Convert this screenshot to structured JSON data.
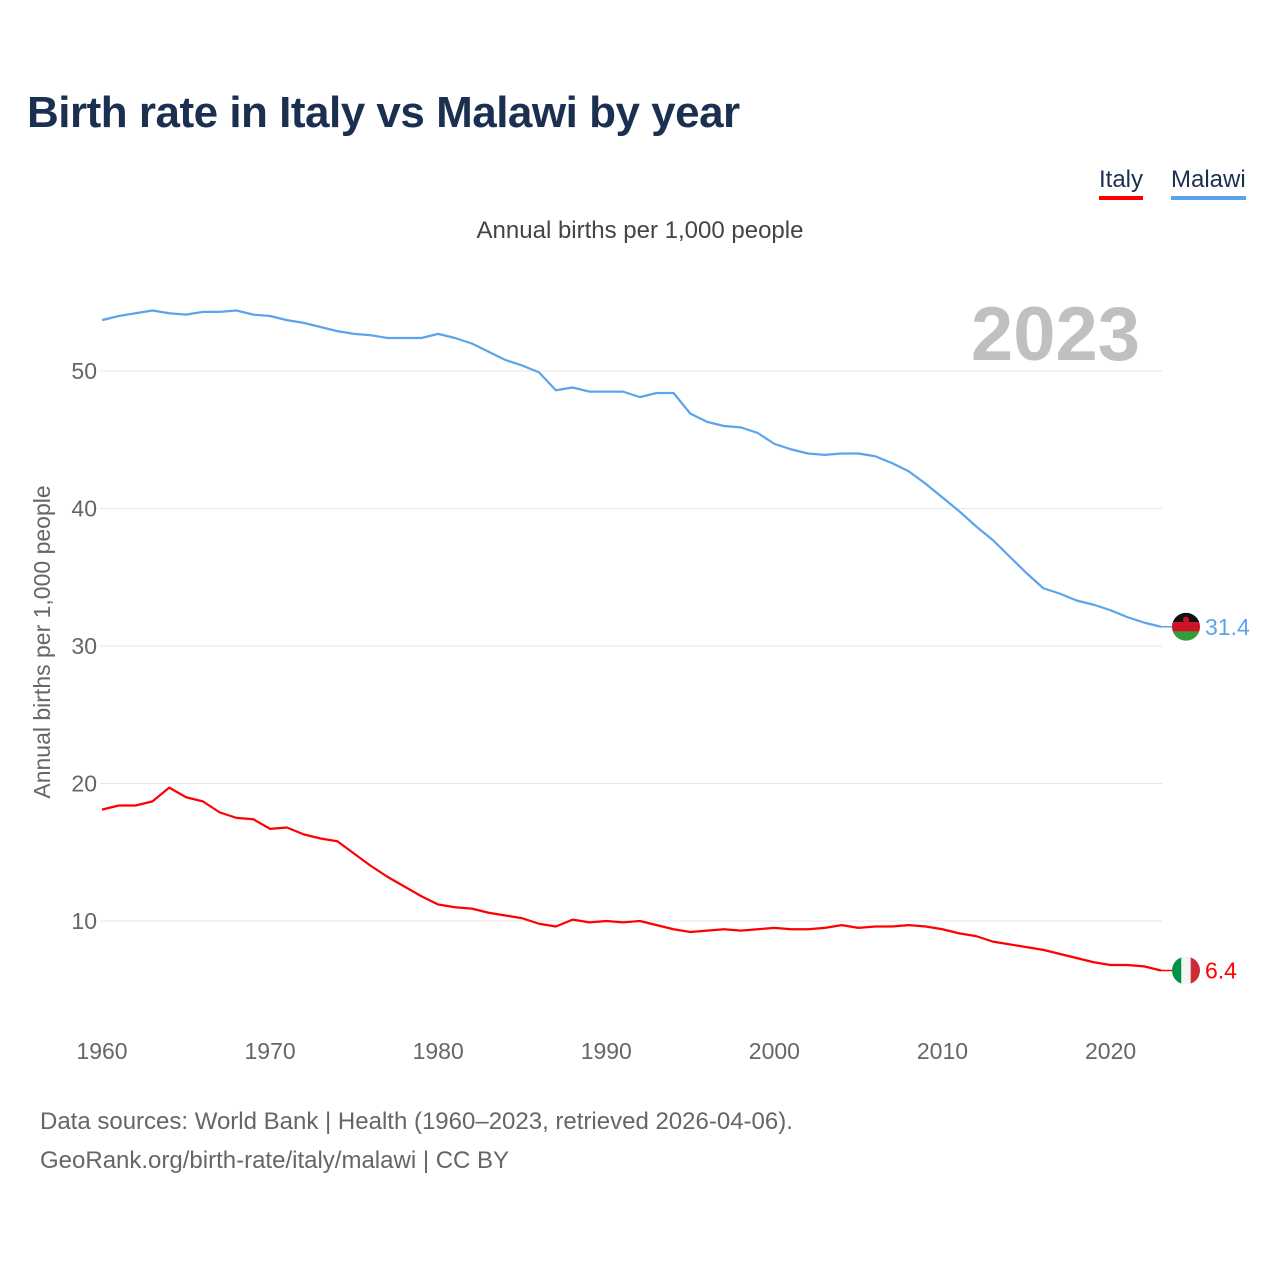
{
  "title": "Birth rate in Italy vs Malawi by year",
  "subtitle": "Annual births per 1,000 people",
  "year_label": "2023",
  "source_line1": "Data sources: World Bank | Health (1960–2023, retrieved 2026-04-06).",
  "source_line2": "GeoRank.org/birth-rate/italy/malawi | CC BY",
  "chart_data": {
    "type": "line",
    "title": "Birth rate in Italy vs Malawi by year",
    "ylabel": "Annual births per 1,000 people",
    "xlabel": "",
    "xlim": [
      1960,
      2023
    ],
    "ylim": [
      0,
      55
    ],
    "grid": true,
    "legend_position": "top-right",
    "x_ticks": [
      1960,
      1970,
      1980,
      1990,
      2000,
      2010,
      2020
    ],
    "y_ticks": [
      10,
      20,
      30,
      40,
      50
    ],
    "x": [
      1960,
      1961,
      1962,
      1963,
      1964,
      1965,
      1966,
      1967,
      1968,
      1969,
      1970,
      1971,
      1972,
      1973,
      1974,
      1975,
      1976,
      1977,
      1978,
      1979,
      1980,
      1981,
      1982,
      1983,
      1984,
      1985,
      1986,
      1987,
      1988,
      1989,
      1990,
      1991,
      1992,
      1993,
      1994,
      1995,
      1996,
      1997,
      1998,
      1999,
      2000,
      2001,
      2002,
      2003,
      2004,
      2005,
      2006,
      2007,
      2008,
      2009,
      2010,
      2011,
      2012,
      2013,
      2014,
      2015,
      2016,
      2017,
      2018,
      2019,
      2020,
      2021,
      2022,
      2023
    ],
    "series": [
      {
        "name": "Italy",
        "color": "#ff0000",
        "end_label": "6.4",
        "values": [
          18.1,
          18.4,
          18.4,
          18.7,
          19.7,
          19.0,
          18.7,
          17.9,
          17.5,
          17.4,
          16.7,
          16.8,
          16.3,
          16.0,
          15.8,
          14.9,
          14.0,
          13.2,
          12.5,
          11.8,
          11.2,
          11.0,
          10.9,
          10.6,
          10.4,
          10.2,
          9.8,
          9.6,
          10.1,
          9.9,
          10.0,
          9.9,
          10.0,
          9.7,
          9.4,
          9.2,
          9.3,
          9.4,
          9.3,
          9.4,
          9.5,
          9.4,
          9.4,
          9.5,
          9.7,
          9.5,
          9.6,
          9.6,
          9.7,
          9.6,
          9.4,
          9.1,
          8.9,
          8.5,
          8.3,
          8.1,
          7.9,
          7.6,
          7.3,
          7.0,
          6.8,
          6.8,
          6.7,
          6.4
        ]
      },
      {
        "name": "Malawi",
        "color": "#5ba4eb",
        "end_label": "31.4",
        "values": [
          53.7,
          54.0,
          54.2,
          54.4,
          54.2,
          54.1,
          54.3,
          54.3,
          54.4,
          54.1,
          54.0,
          53.7,
          53.5,
          53.2,
          52.9,
          52.7,
          52.6,
          52.4,
          52.4,
          52.4,
          52.7,
          52.4,
          52.0,
          51.4,
          50.8,
          50.4,
          49.9,
          48.6,
          48.8,
          48.5,
          48.5,
          48.5,
          48.1,
          48.4,
          48.4,
          46.9,
          46.3,
          46.0,
          45.9,
          45.5,
          44.7,
          44.3,
          44.0,
          43.9,
          44.0,
          44.0,
          43.8,
          43.3,
          42.7,
          41.8,
          40.8,
          39.8,
          38.7,
          37.7,
          36.5,
          35.3,
          34.2,
          33.8,
          33.3,
          33.0,
          32.6,
          32.1,
          31.7,
          31.4
        ]
      }
    ]
  }
}
